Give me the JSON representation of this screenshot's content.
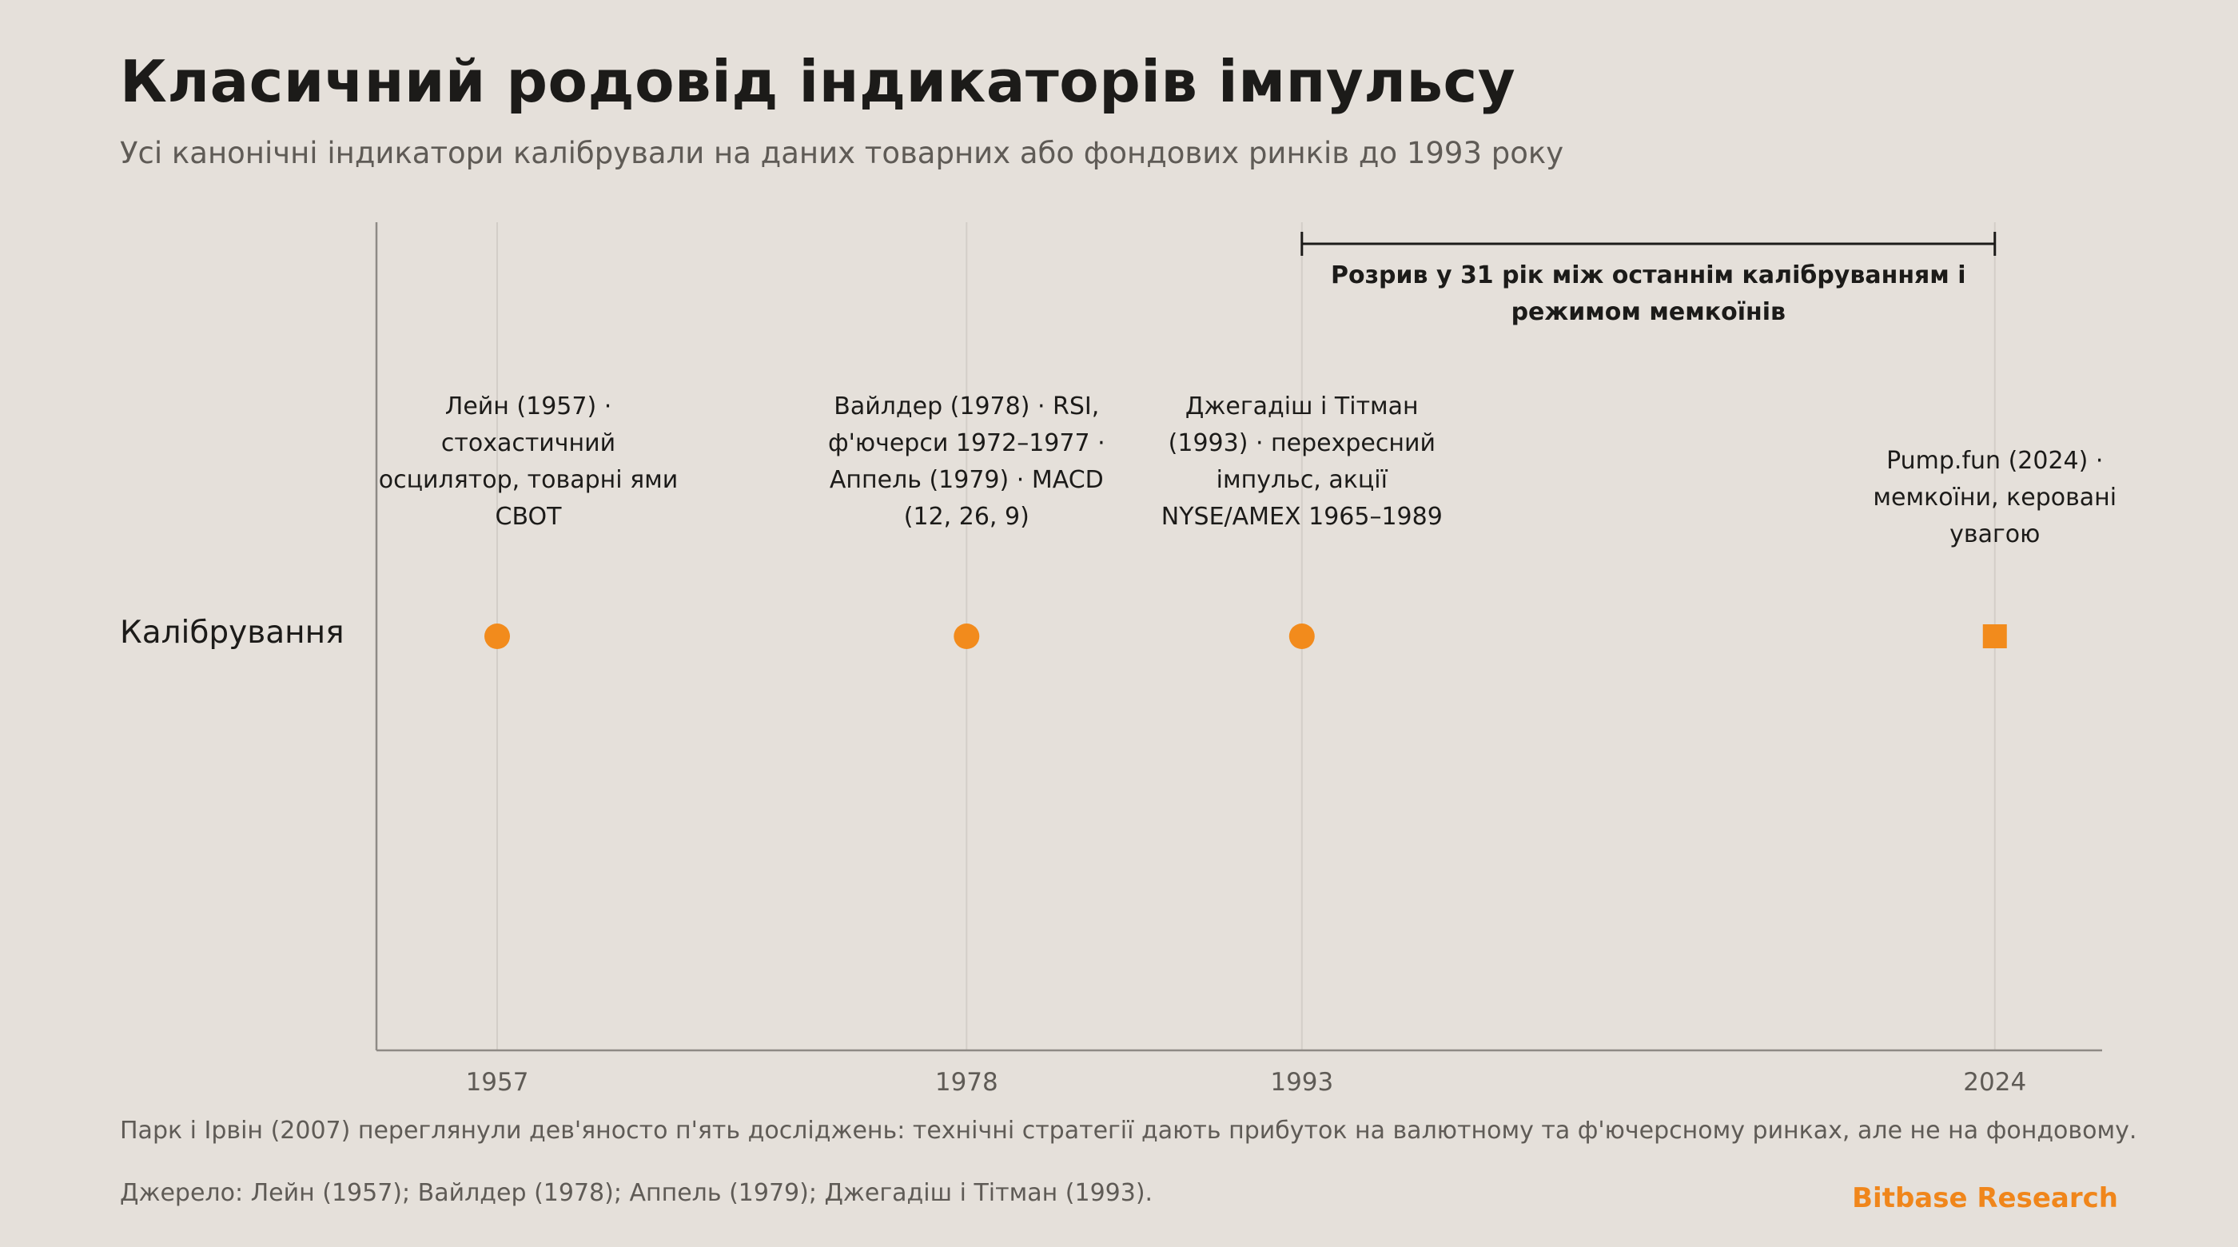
{
  "header": {
    "title": "Класичний родовід індикаторів імпульсу",
    "subtitle": "Усі канонічні індикатори калібрували на даних товарних або фондових ринків до 1993 року"
  },
  "chart_data": {
    "type": "scatter",
    "title": "Класичний родовід індикаторів імпульсу",
    "subtitle": "Усі канонічні індикатори калібрували на даних товарних або фондових ринків до 1993 року",
    "xlabel": "",
    "ylabel": "",
    "row_label": "Калібрування",
    "x_ticks": [
      "1957",
      "1978",
      "1993",
      "2024"
    ],
    "xlim": [
      1951.6,
      2028.8
    ],
    "grid": "vertical lines at event years",
    "series": [
      {
        "marker": "circle",
        "color": "#f28b1c",
        "points": [
          {
            "x": 1957,
            "label": [
              "Лейн (1957) ·",
              "стохастичний",
              "осцилятор, товарні ями",
              "CBOT"
            ]
          },
          {
            "x": 1978,
            "label": [
              "Вайлдер (1978) · RSI,",
              "ф'ючерси 1972–1977 ·",
              "Аппель (1979) · MACD",
              "(12, 26, 9)"
            ]
          },
          {
            "x": 1993,
            "label": [
              "Джегадіш і Тітман",
              "(1993) · перехресний",
              "імпульс, акції",
              "NYSE/AMEX 1965–1989"
            ]
          }
        ]
      },
      {
        "marker": "square",
        "color": "#f28b1c",
        "points": [
          {
            "x": 2024,
            "label": [
              "Pump.fun (2024) ·",
              "мемкоїни, керовані",
              "увагою"
            ]
          }
        ]
      }
    ],
    "annotations": [
      {
        "type": "bracket",
        "x_start": 1993,
        "x_end": 2024,
        "text": [
          "Розрив у 31 рік між останнім калібруванням і",
          "режимом мемкоїнів"
        ]
      }
    ]
  },
  "footer": {
    "note": "Парк і Ірвін (2007) переглянули дев'яносто п'ять досліджень: технічні стратегії дають прибуток на валютному та ф'ючерсному ринках, але не на фондовому.",
    "source": "Джерело: Лейн (1957); Вайлдер (1978); Аппель (1979); Джегадіш і Тітман (1993).",
    "brand": "Bitbase Research"
  },
  "colors": {
    "background": "#e5e0da",
    "accent": "#f28b1c",
    "brand": "#f0861b",
    "text": "#1c1b19",
    "muted": "#5f5b56",
    "axis": "#8e8a85",
    "grid": "#d3cec8"
  }
}
